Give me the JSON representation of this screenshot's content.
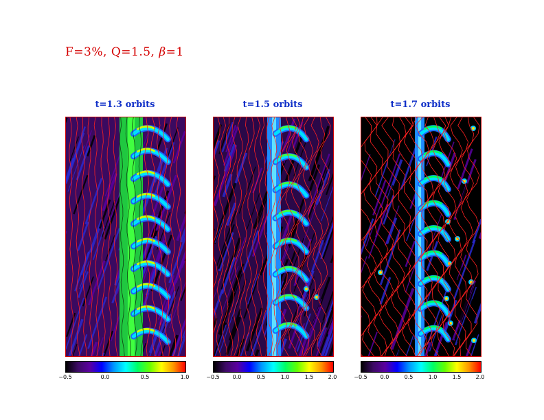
{
  "figure": {
    "title_prefix": "F=3%, Q=1.5, ",
    "title_beta_symbol": "β",
    "title_suffix": "=1"
  },
  "panels": [
    {
      "title": "t=1.3 orbits",
      "colorbar_ticks": [
        "−0.5",
        "0.0",
        "0.5",
        "1.0"
      ]
    },
    {
      "title": "t=1.5 orbits",
      "colorbar_ticks": [
        "−0.5",
        "0.0",
        "0.5",
        "1.0",
        "1.5",
        "2.0"
      ]
    },
    {
      "title": "t=1.7 orbits",
      "colorbar_ticks": [
        "−0.5",
        "0.0",
        "0.5",
        "1.0",
        "1.5",
        "2.0"
      ]
    }
  ],
  "colors": {
    "title": "#d40000",
    "panel_title": "#1030c8",
    "frame": "#d00000",
    "colormap": [
      "#000000",
      "#3c0a64",
      "#5a00a0",
      "#0000ff",
      "#0096ff",
      "#00ffff",
      "#00ff64",
      "#64ff00",
      "#ffff00",
      "#ff9600",
      "#ff0000"
    ]
  }
}
